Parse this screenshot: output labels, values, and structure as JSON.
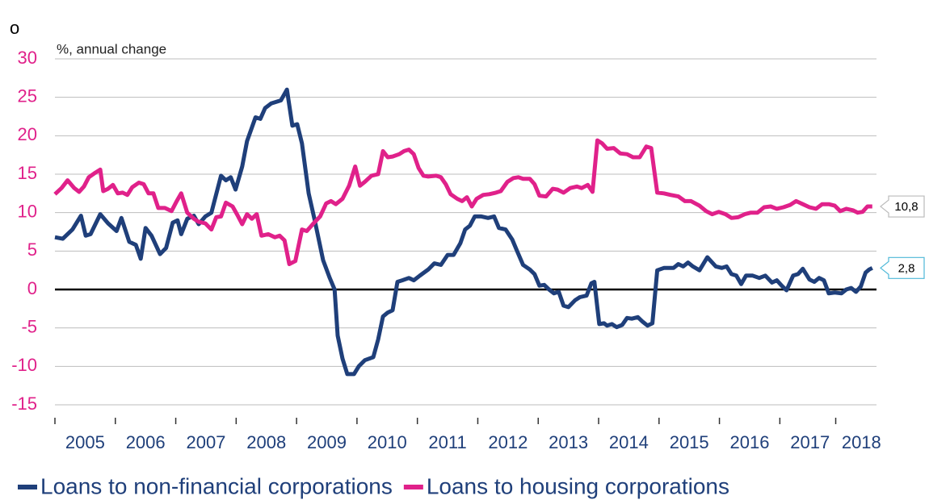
{
  "chart_data": {
    "type": "line",
    "title": "o",
    "y_label": "%, annual change",
    "xlim": [
      2005,
      2018.6
    ],
    "xticks": [
      {
        "value": 2005.5,
        "label": "2005"
      },
      {
        "value": 2006.5,
        "label": "2006"
      },
      {
        "value": 2007.5,
        "label": "2007"
      },
      {
        "value": 2008.5,
        "label": "2008"
      },
      {
        "value": 2009.5,
        "label": "2009"
      },
      {
        "value": 2010.5,
        "label": "2010"
      },
      {
        "value": 2011.5,
        "label": "2011"
      },
      {
        "value": 2012.5,
        "label": "2012"
      },
      {
        "value": 2013.5,
        "label": "2013"
      },
      {
        "value": 2014.5,
        "label": "2014"
      },
      {
        "value": 2015.5,
        "label": "2015"
      },
      {
        "value": 2016.5,
        "label": "2016"
      },
      {
        "value": 2017.5,
        "label": "2017"
      },
      {
        "value": 2018.35,
        "label": "2018"
      }
    ],
    "ylim": [
      -15,
      30
    ],
    "yticks": [
      -15,
      -10,
      -5,
      0,
      5,
      10,
      15,
      20,
      25,
      30
    ],
    "grid": true,
    "legend": "bottom",
    "series": [
      {
        "name": "Loans to non-financial corporations",
        "color": "#1f3f7a",
        "end_label": "2,8",
        "x": [
          2005.0,
          2005.13,
          2005.29,
          2005.43,
          2005.51,
          2005.59,
          2005.75,
          2005.88,
          2006.02,
          2006.1,
          2006.23,
          2006.34,
          2006.42,
          2006.5,
          2006.6,
          2006.74,
          2006.84,
          2006.95,
          2007.03,
          2007.09,
          2007.19,
          2007.3,
          2007.38,
          2007.49,
          2007.59,
          2007.75,
          2007.83,
          2007.91,
          2007.99,
          2008.1,
          2008.18,
          2008.32,
          2008.4,
          2008.48,
          2008.58,
          2008.74,
          2008.84,
          2008.93,
          2009.01,
          2009.09,
          2009.2,
          2009.3,
          2009.44,
          2009.55,
          2009.63,
          2009.68,
          2009.76,
          2009.84,
          2009.95,
          2010.03,
          2010.13,
          2010.27,
          2010.35,
          2010.43,
          2010.51,
          2010.59,
          2010.67,
          2010.75,
          2010.86,
          2010.94,
          2011.04,
          2011.18,
          2011.28,
          2011.39,
          2011.5,
          2011.6,
          2011.71,
          2011.79,
          2011.87,
          2011.95,
          2012.06,
          2012.17,
          2012.27,
          2012.35,
          2012.46,
          2012.57,
          2012.65,
          2012.75,
          2012.86,
          2012.94,
          2013.02,
          2013.1,
          2013.18,
          2013.26,
          2013.34,
          2013.42,
          2013.5,
          2013.61,
          2013.69,
          2013.8,
          2013.88,
          2013.93,
          2014.01,
          2014.09,
          2014.14,
          2014.22,
          2014.3,
          2014.39,
          2014.47,
          2014.55,
          2014.65,
          2014.73,
          2014.81,
          2014.89,
          2014.97,
          2015.08,
          2015.24,
          2015.32,
          2015.4,
          2015.48,
          2015.56,
          2015.67,
          2015.8,
          2015.94,
          2016.04,
          2016.12,
          2016.2,
          2016.28,
          2016.36,
          2016.44,
          2016.55,
          2016.66,
          2016.76,
          2016.87,
          2016.95,
          2017.03,
          2017.11,
          2017.22,
          2017.3,
          2017.38,
          2017.49,
          2017.57,
          2017.65,
          2017.73,
          2017.81,
          2017.91,
          2018.02,
          2018.1,
          2018.18,
          2018.26,
          2018.34,
          2018.42,
          2018.48,
          2018.53
        ],
        "values": [
          6.8,
          6.6,
          7.8,
          9.6,
          7.0,
          7.2,
          9.8,
          8.6,
          7.6,
          9.3,
          6.2,
          5.8,
          4.0,
          8.0,
          7.0,
          4.6,
          5.4,
          8.7,
          9.0,
          7.2,
          9.2,
          9.6,
          8.5,
          9.5,
          10.0,
          14.8,
          14.2,
          14.6,
          13.0,
          16,
          19.3,
          22.4,
          22.2,
          23.6,
          24.2,
          24.6,
          26.0,
          21.3,
          21.5,
          19.0,
          12.5,
          9,
          3.8,
          1.5,
          0,
          -6,
          -9,
          -11,
          -11,
          -10,
          -9.2,
          -8.8,
          -6.5,
          -3.5,
          -3,
          -2.7,
          1.0,
          1.2,
          1.5,
          1.2,
          1.8,
          2.6,
          3.4,
          3.2,
          4.5,
          4.5,
          6,
          7.8,
          8.3,
          9.5,
          9.5,
          9.3,
          9.5,
          8.0,
          7.8,
          6.5,
          5.0,
          3.2,
          2.6,
          2.0,
          0.5,
          0.6,
          0,
          -0.5,
          -0.3,
          -2.1,
          -2.3,
          -1.4,
          -1.0,
          -0.8,
          0.8,
          1.0,
          -4.5,
          -4.4,
          -4.7,
          -4.5,
          -4.9,
          -4.6,
          -3.7,
          -3.8,
          -3.6,
          -4.2,
          -4.7,
          -4.4,
          2.5,
          2.8,
          2.8,
          3.3,
          3.0,
          3.5,
          3.0,
          2.5,
          4.2,
          3.0,
          2.8,
          3.0,
          2.0,
          1.8,
          0.7,
          1.8,
          1.8,
          1.5,
          1.8,
          0.9,
          1.2,
          0.5,
          -0.1,
          1.8,
          2.0,
          2.7,
          1.3,
          1.0,
          1.5,
          1.2,
          -0.5,
          -0.4,
          -0.5,
          0,
          0.2,
          -0.3,
          0.4,
          2.2,
          2.6,
          2.8
        ]
      },
      {
        "name": "Loans to housing corporations",
        "color": "#e0218a",
        "end_label": "10,8",
        "x": [
          2005.0,
          2005.11,
          2005.21,
          2005.32,
          2005.4,
          2005.48,
          2005.56,
          2005.67,
          2005.75,
          2005.8,
          2005.88,
          2005.96,
          2006.04,
          2006.12,
          2006.2,
          2006.28,
          2006.39,
          2006.47,
          2006.55,
          2006.63,
          2006.71,
          2006.82,
          2006.93,
          2007.01,
          2007.09,
          2007.19,
          2007.3,
          2007.38,
          2007.49,
          2007.59,
          2007.67,
          2007.75,
          2007.83,
          2007.94,
          2008.02,
          2008.1,
          2008.18,
          2008.26,
          2008.34,
          2008.42,
          2008.53,
          2008.64,
          2008.72,
          2008.8,
          2008.88,
          2008.98,
          2009.09,
          2009.17,
          2009.28,
          2009.39,
          2009.49,
          2009.57,
          2009.65,
          2009.76,
          2009.87,
          2009.97,
          2010.05,
          2010.13,
          2010.24,
          2010.35,
          2010.43,
          2010.51,
          2010.59,
          2010.7,
          2010.78,
          2010.86,
          2010.94,
          2011.02,
          2011.1,
          2011.18,
          2011.31,
          2011.39,
          2011.47,
          2011.55,
          2011.66,
          2011.74,
          2011.82,
          2011.9,
          2011.98,
          2012.09,
          2012.19,
          2012.3,
          2012.38,
          2012.49,
          2012.59,
          2012.67,
          2012.75,
          2012.86,
          2012.94,
          2013.02,
          2013.13,
          2013.24,
          2013.32,
          2013.42,
          2013.53,
          2013.64,
          2013.72,
          2013.82,
          2013.9,
          2013.98,
          2014.06,
          2014.14,
          2014.25,
          2014.36,
          2014.47,
          2014.57,
          2014.68,
          2014.79,
          2014.87,
          2014.97,
          2015.08,
          2015.19,
          2015.32,
          2015.43,
          2015.53,
          2015.67,
          2015.78,
          2015.88,
          2015.99,
          2016.1,
          2016.2,
          2016.31,
          2016.42,
          2016.52,
          2016.63,
          2016.74,
          2016.85,
          2016.95,
          2017.06,
          2017.17,
          2017.27,
          2017.38,
          2017.49,
          2017.6,
          2017.7,
          2017.81,
          2017.91,
          2018.0,
          2018.1,
          2018.21,
          2018.29,
          2018.37,
          2018.45,
          2018.53
        ],
        "values": [
          12.4,
          13.2,
          14.2,
          13.2,
          12.7,
          13.4,
          14.6,
          15.2,
          15.6,
          12.8,
          13.1,
          13.6,
          12.5,
          12.6,
          12.3,
          13.3,
          13.9,
          13.7,
          12.5,
          12.5,
          10.6,
          10.6,
          10.2,
          11.4,
          12.5,
          10.0,
          9.2,
          8.8,
          8.6,
          7.8,
          9.4,
          9.5,
          11.3,
          10.8,
          9.7,
          8.5,
          9.8,
          9.2,
          9.8,
          7.0,
          7.2,
          6.8,
          7.0,
          6.4,
          3.3,
          3.7,
          7.8,
          7.6,
          8.6,
          9.5,
          11.2,
          11.5,
          11.1,
          11.8,
          13.5,
          16.0,
          13.5,
          14.0,
          14.8,
          15.0,
          18.0,
          17.2,
          17.3,
          17.6,
          18.0,
          18.2,
          17.6,
          15.8,
          14.8,
          14.7,
          14.8,
          14.6,
          13.7,
          12.4,
          11.8,
          11.5,
          12.0,
          10.8,
          11.8,
          12.3,
          12.4,
          12.6,
          12.8,
          14.0,
          14.5,
          14.6,
          14.4,
          14.4,
          13.7,
          12.2,
          12.1,
          13.1,
          13.0,
          12.6,
          13.2,
          13.4,
          13.2,
          13.6,
          12.7,
          19.4,
          19.0,
          18.3,
          18.4,
          17.7,
          17.6,
          17.2,
          17.2,
          18.6,
          18.4,
          12.6,
          12.5,
          12.3,
          12.1,
          11.5,
          11.5,
          10.9,
          10.2,
          9.8,
          10.1,
          9.8,
          9.3,
          9.4,
          9.8,
          10.0,
          10.0,
          10.7,
          10.8,
          10.5,
          10.7,
          11.0,
          11.5,
          11.1,
          10.7,
          10.5,
          11.1,
          11.1,
          10.9,
          10.2,
          10.5,
          10.3,
          10.0,
          10.1,
          10.8,
          10.8
        ]
      }
    ]
  }
}
